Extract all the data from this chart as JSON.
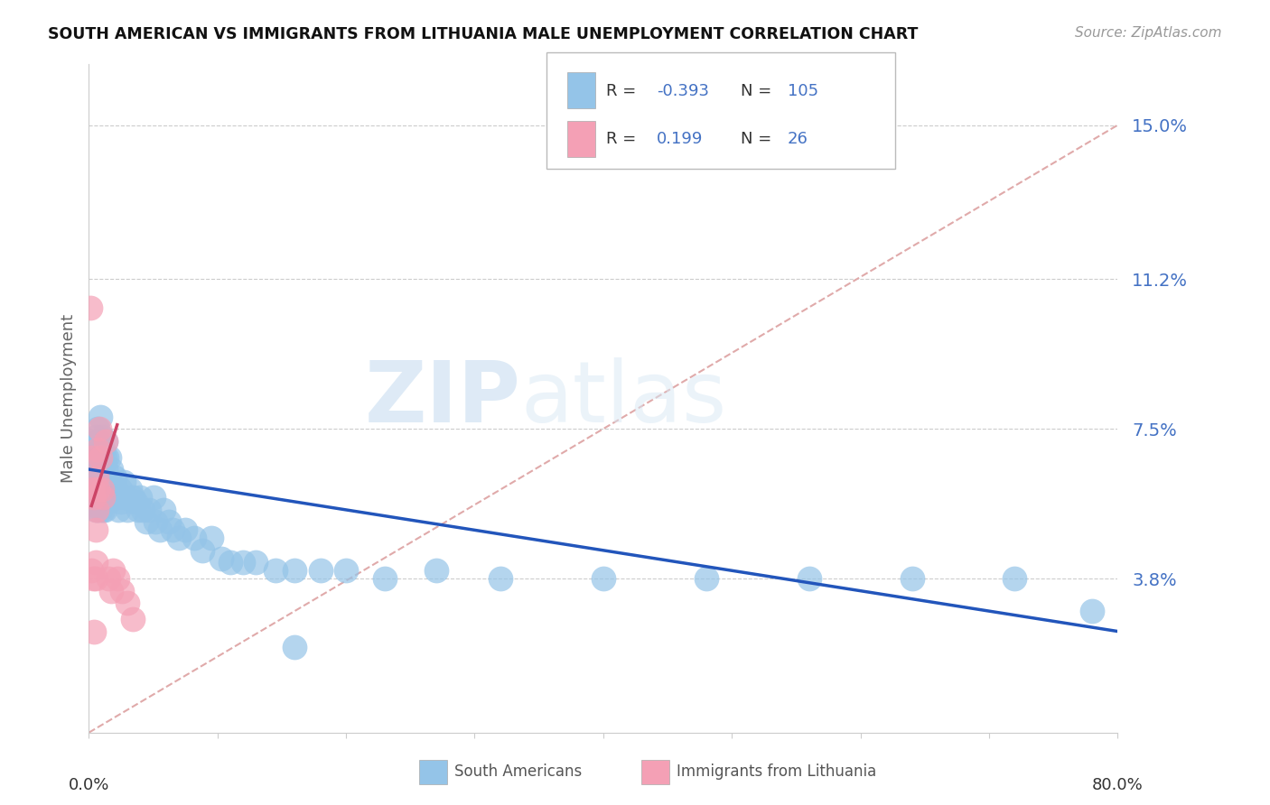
{
  "title": "SOUTH AMERICAN VS IMMIGRANTS FROM LITHUANIA MALE UNEMPLOYMENT CORRELATION CHART",
  "source": "Source: ZipAtlas.com",
  "ylabel": "Male Unemployment",
  "ytick_labels": [
    "3.8%",
    "7.5%",
    "11.2%",
    "15.0%"
  ],
  "ytick_values": [
    0.038,
    0.075,
    0.112,
    0.15
  ],
  "xmin": 0.0,
  "xmax": 0.8,
  "ymin": 0.0,
  "ymax": 0.165,
  "color_blue": "#94c4e8",
  "color_pink": "#f4a0b5",
  "color_blue_text": "#4472c4",
  "color_trendline_blue": "#2255bb",
  "color_trendline_pink": "#cc4466",
  "color_refline": "#e0aaaa",
  "watermark_zip": "ZIP",
  "watermark_atlas": "atlas",
  "blue_scatter_x": [
    0.002,
    0.003,
    0.003,
    0.004,
    0.004,
    0.004,
    0.005,
    0.005,
    0.005,
    0.005,
    0.005,
    0.006,
    0.006,
    0.006,
    0.006,
    0.006,
    0.007,
    0.007,
    0.007,
    0.007,
    0.007,
    0.008,
    0.008,
    0.008,
    0.008,
    0.008,
    0.009,
    0.009,
    0.009,
    0.009,
    0.009,
    0.01,
    0.01,
    0.01,
    0.01,
    0.01,
    0.011,
    0.011,
    0.011,
    0.011,
    0.012,
    0.012,
    0.012,
    0.012,
    0.013,
    0.013,
    0.013,
    0.013,
    0.014,
    0.014,
    0.014,
    0.015,
    0.015,
    0.016,
    0.016,
    0.017,
    0.017,
    0.018,
    0.019,
    0.02,
    0.021,
    0.022,
    0.023,
    0.024,
    0.025,
    0.027,
    0.028,
    0.03,
    0.032,
    0.034,
    0.036,
    0.038,
    0.04,
    0.042,
    0.045,
    0.047,
    0.05,
    0.052,
    0.055,
    0.058,
    0.062,
    0.065,
    0.07,
    0.075,
    0.082,
    0.088,
    0.095,
    0.103,
    0.11,
    0.12,
    0.13,
    0.145,
    0.16,
    0.18,
    0.2,
    0.23,
    0.27,
    0.32,
    0.4,
    0.48,
    0.56,
    0.64,
    0.72,
    0.78,
    0.16
  ],
  "blue_scatter_y": [
    0.06,
    0.058,
    0.07,
    0.063,
    0.057,
    0.068,
    0.062,
    0.059,
    0.073,
    0.055,
    0.065,
    0.06,
    0.058,
    0.068,
    0.056,
    0.072,
    0.065,
    0.059,
    0.055,
    0.07,
    0.075,
    0.06,
    0.058,
    0.072,
    0.056,
    0.068,
    0.063,
    0.058,
    0.07,
    0.055,
    0.078,
    0.065,
    0.06,
    0.057,
    0.068,
    0.073,
    0.058,
    0.062,
    0.055,
    0.07,
    0.063,
    0.058,
    0.068,
    0.055,
    0.06,
    0.065,
    0.058,
    0.072,
    0.057,
    0.062,
    0.068,
    0.06,
    0.058,
    0.062,
    0.068,
    0.058,
    0.065,
    0.06,
    0.058,
    0.063,
    0.06,
    0.058,
    0.055,
    0.06,
    0.057,
    0.062,
    0.058,
    0.055,
    0.06,
    0.058,
    0.057,
    0.055,
    0.058,
    0.055,
    0.052,
    0.055,
    0.058,
    0.052,
    0.05,
    0.055,
    0.052,
    0.05,
    0.048,
    0.05,
    0.048,
    0.045,
    0.048,
    0.043,
    0.042,
    0.042,
    0.042,
    0.04,
    0.04,
    0.04,
    0.04,
    0.038,
    0.04,
    0.038,
    0.038,
    0.038,
    0.038,
    0.038,
    0.038,
    0.03,
    0.021
  ],
  "pink_scatter_x": [
    0.001,
    0.002,
    0.002,
    0.003,
    0.003,
    0.004,
    0.004,
    0.005,
    0.005,
    0.005,
    0.006,
    0.006,
    0.007,
    0.007,
    0.008,
    0.009,
    0.01,
    0.011,
    0.013,
    0.015,
    0.017,
    0.019,
    0.022,
    0.026,
    0.03,
    0.034
  ],
  "pink_scatter_y": [
    0.105,
    0.04,
    0.068,
    0.06,
    0.038,
    0.058,
    0.025,
    0.05,
    0.042,
    0.038,
    0.063,
    0.055,
    0.07,
    0.06,
    0.075,
    0.068,
    0.06,
    0.058,
    0.072,
    0.038,
    0.035,
    0.04,
    0.038,
    0.035,
    0.032,
    0.028
  ],
  "blue_line_x0": 0.0,
  "blue_line_x1": 0.8,
  "blue_line_y0": 0.065,
  "blue_line_y1": 0.025,
  "pink_line_x0": 0.002,
  "pink_line_x1": 0.022,
  "pink_line_y0": 0.056,
  "pink_line_y1": 0.076,
  "ref_line_x0": 0.0,
  "ref_line_x1": 0.8,
  "ref_line_y0": 0.0,
  "ref_line_y1": 0.15
}
